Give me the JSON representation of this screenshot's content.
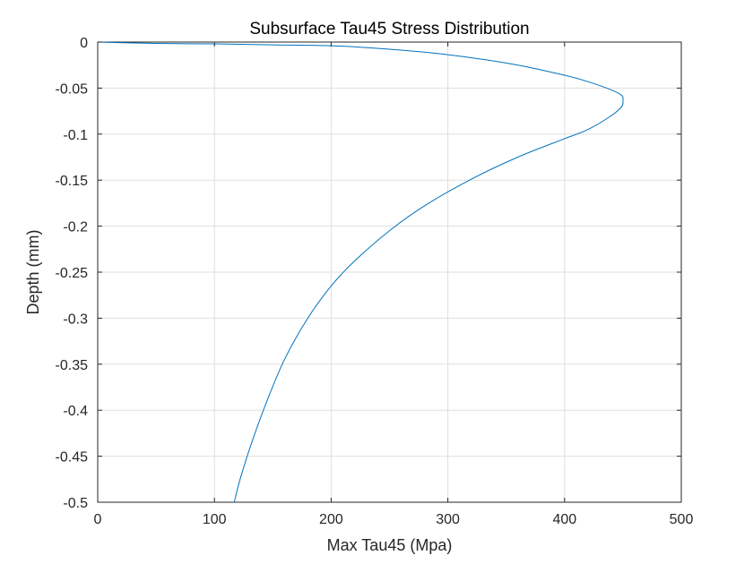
{
  "chart_data": {
    "type": "line",
    "title": "Subsurface Tau45 Stress Distribution",
    "xlabel": "Max Tau45 (Mpa)",
    "ylabel": "Depth (mm)",
    "xlim": [
      0,
      500
    ],
    "ylim": [
      -0.5,
      0
    ],
    "x_ticks": [
      0,
      100,
      200,
      300,
      400,
      500
    ],
    "y_ticks": [
      0,
      -0.05,
      -0.1,
      -0.15,
      -0.2,
      -0.25,
      -0.3,
      -0.35,
      -0.4,
      -0.45,
      -0.5
    ],
    "x_tick_labels": [
      "0",
      "100",
      "200",
      "300",
      "400",
      "500"
    ],
    "y_tick_labels": [
      "0",
      "-0.05",
      "-0.1",
      "-0.15",
      "-0.2",
      "-0.25",
      "-0.3",
      "-0.35",
      "-0.4",
      "-0.45",
      "-0.5"
    ],
    "grid": true,
    "series": [
      {
        "color": "#0072bd",
        "x": [
          0,
          50,
          100,
          150,
          200,
          230,
          280,
          320,
          360,
          400,
          420,
          440,
          449,
          450,
          449,
          440,
          420,
          400,
          360,
          320,
          280,
          250,
          220,
          200,
          180,
          160,
          145,
          132,
          122,
          117
        ],
        "y": [
          0,
          -0.0015,
          -0.002,
          -0.003,
          -0.004,
          -0.006,
          -0.011,
          -0.017,
          -0.025,
          -0.036,
          -0.043,
          -0.052,
          -0.058,
          -0.063,
          -0.07,
          -0.08,
          -0.095,
          -0.105,
          -0.125,
          -0.149,
          -0.178,
          -0.205,
          -0.238,
          -0.265,
          -0.3,
          -0.345,
          -0.39,
          -0.435,
          -0.475,
          -0.5
        ]
      }
    ]
  }
}
